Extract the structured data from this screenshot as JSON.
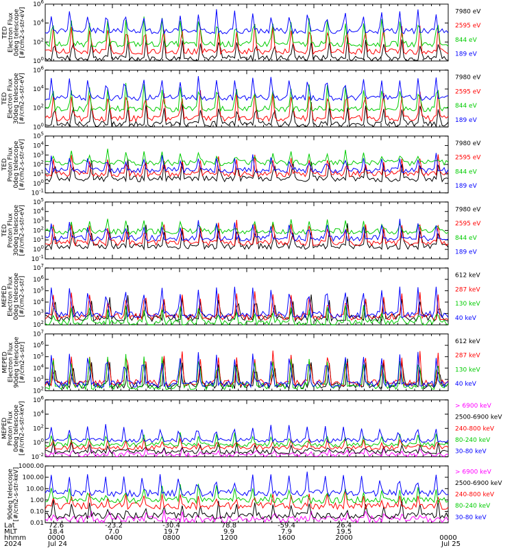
{
  "figure": {
    "date": {
      "year": "2024",
      "start": "Jul 24",
      "end": "Jul 25"
    },
    "x_axis_rows": [
      {
        "label": "Lat",
        "values": [
          "72.6",
          "-23.2",
          "-30.4",
          "78.8",
          "-59.4",
          "26.4"
        ]
      },
      {
        "label": "MLT",
        "values": [
          "18.4",
          "7.0",
          "19.7",
          "9.9",
          "7.9",
          "19.5"
        ]
      },
      {
        "label": "hhmm",
        "values": [
          "0000",
          "0400",
          "0800",
          "1200",
          "1600",
          "2000",
          "0000"
        ]
      }
    ]
  },
  "chart_data": [
    {
      "type": "line",
      "ylabel": [
        "TED",
        "Electron Flux",
        "0deg telescope",
        "[#/cm2-s-str-eV]"
      ],
      "yscale": "log",
      "ylim": [
        1,
        1000000
      ],
      "yticks": [
        {
          "v": 1,
          "label": "10^0"
        },
        {
          "v": 100,
          "label": "10^2"
        },
        {
          "v": 10000,
          "label": "10^4"
        },
        {
          "v": 1000000,
          "label": "10^6"
        }
      ],
      "series": [
        {
          "name": "7980 eV",
          "color": "#000000",
          "base": 2,
          "peak": 300
        },
        {
          "name": "2595 eV",
          "color": "#ff0000",
          "base": 10,
          "peak": 5000
        },
        {
          "name": "844 eV",
          "color": "#00cc00",
          "base": 60,
          "peak": 30000
        },
        {
          "name": "189 eV",
          "color": "#0000ff",
          "base": 1500,
          "peak": 200000
        }
      ]
    },
    {
      "type": "line",
      "ylabel": [
        "TED",
        "Electron Flux",
        "30deg telescope",
        "[#/cm2-s-str-eV]"
      ],
      "yscale": "log",
      "ylim": [
        1,
        1000000
      ],
      "yticks": [
        {
          "v": 1,
          "label": "10^0"
        },
        {
          "v": 100,
          "label": "10^2"
        },
        {
          "v": 10000,
          "label": "10^4"
        },
        {
          "v": 1000000,
          "label": "10^6"
        }
      ],
      "series": [
        {
          "name": "7980 eV",
          "color": "#000000",
          "base": 2,
          "peak": 300
        },
        {
          "name": "2595 eV",
          "color": "#ff0000",
          "base": 8,
          "peak": 5000
        },
        {
          "name": "844 eV",
          "color": "#00cc00",
          "base": 80,
          "peak": 30000
        },
        {
          "name": "189 eV",
          "color": "#0000ff",
          "base": 1200,
          "peak": 200000
        }
      ]
    },
    {
      "type": "line",
      "ylabel": [
        "TED",
        "Proton Flux",
        "0deg telescope",
        "[#/cm2-s-str-eV]"
      ],
      "yscale": "log",
      "ylim": [
        0.1,
        100000
      ],
      "yticks": [
        {
          "v": 0.1,
          "label": "10^-1"
        },
        {
          "v": 1,
          "label": "10^0"
        },
        {
          "v": 10,
          "label": "10^1"
        },
        {
          "v": 100,
          "label": "10^2"
        },
        {
          "v": 1000,
          "label": "10^3"
        },
        {
          "v": 10000,
          "label": "10^4"
        },
        {
          "v": 100000,
          "label": "10^5"
        }
      ],
      "series": [
        {
          "name": "7980 eV",
          "color": "#000000",
          "base": 3,
          "peak": 300
        },
        {
          "name": "2595 eV",
          "color": "#ff0000",
          "base": 10,
          "peak": 800
        },
        {
          "name": "844 eV",
          "color": "#00cc00",
          "base": 150,
          "peak": 3000
        },
        {
          "name": "189 eV",
          "color": "#0000ff",
          "base": 25,
          "peak": 1000
        }
      ]
    },
    {
      "type": "line",
      "ylabel": [
        "TED",
        "Proton Flux",
        "30deg telescope",
        "[#/cm2-s-str-eV]"
      ],
      "yscale": "log",
      "ylim": [
        0.1,
        100000
      ],
      "yticks": [
        {
          "v": 0.1,
          "label": "10^-1"
        },
        {
          "v": 1,
          "label": "10^0"
        },
        {
          "v": 10,
          "label": "10^1"
        },
        {
          "v": 100,
          "label": "10^2"
        },
        {
          "v": 1000,
          "label": "10^3"
        },
        {
          "v": 10000,
          "label": "10^4"
        },
        {
          "v": 100000,
          "label": "10^5"
        }
      ],
      "series": [
        {
          "name": "7980 eV",
          "color": "#000000",
          "base": 2,
          "peak": 300
        },
        {
          "name": "2595 eV",
          "color": "#ff0000",
          "base": 5,
          "peak": 800
        },
        {
          "name": "844 eV",
          "color": "#00cc00",
          "base": 80,
          "peak": 2000
        },
        {
          "name": "189 eV",
          "color": "#0000ff",
          "base": 15,
          "peak": 1000
        }
      ]
    },
    {
      "type": "line",
      "ylabel": [
        "MEPED",
        "Electron Flux",
        "0deg telescope",
        "[#/cm2-s-str]"
      ],
      "yscale": "log",
      "ylim": [
        100,
        10000000
      ],
      "yticks": [
        {
          "v": 100,
          "label": "10^2"
        },
        {
          "v": 1000,
          "label": "10^3"
        },
        {
          "v": 10000,
          "label": "10^4"
        },
        {
          "v": 100000,
          "label": "10^5"
        },
        {
          "v": 1000000,
          "label": "10^6"
        },
        {
          "v": 10000000,
          "label": "10^7"
        }
      ],
      "series": [
        {
          "name": "612 keV",
          "color": "#000000",
          "base": 400,
          "peak": 40000
        },
        {
          "name": "287 keV",
          "color": "#ff0000",
          "base": 500,
          "peak": 80000
        },
        {
          "name": "130 keV",
          "color": "#00cc00",
          "base": 150,
          "peak": 5000
        },
        {
          "name": "40 keV",
          "color": "#0000ff",
          "base": 800,
          "peak": 300000
        }
      ]
    },
    {
      "type": "line",
      "ylabel": [
        "MEPED",
        "Electron Flux",
        "90deg telescope",
        "[#/cm2-s-str]"
      ],
      "yscale": "log",
      "ylim": [
        100,
        10000000
      ],
      "yticks": [
        {
          "v": 100,
          "label": "10^2"
        },
        {
          "v": 1000,
          "label": "10^3"
        },
        {
          "v": 10000,
          "label": "10^4"
        },
        {
          "v": 100000,
          "label": "10^5"
        },
        {
          "v": 1000000,
          "label": "10^6"
        },
        {
          "v": 10000000,
          "label": "10^7"
        }
      ],
      "series": [
        {
          "name": "612 keV",
          "color": "#000000",
          "base": 300,
          "peak": 60000
        },
        {
          "name": "287 keV",
          "color": "#ff0000",
          "base": 500,
          "peak": 300000
        },
        {
          "name": "130 keV",
          "color": "#00cc00",
          "base": 250,
          "peak": 100000
        },
        {
          "name": "40 keV",
          "color": "#0000ff",
          "base": 400,
          "peak": 200000
        }
      ]
    },
    {
      "type": "line",
      "ylabel": [
        "MEPED",
        "Proton Flux",
        "0deg telescope",
        "[#/cm2-s-str-keV]"
      ],
      "yscale": "log",
      "ylim": [
        0.01,
        1000000
      ],
      "yticks": [
        {
          "v": 0.01,
          "label": "10^-2"
        },
        {
          "v": 1,
          "label": "10^0"
        },
        {
          "v": 100,
          "label": "10^2"
        },
        {
          "v": 10000,
          "label": "10^4"
        },
        {
          "v": 1000000,
          "label": "10^6"
        }
      ],
      "series": [
        {
          "name": "> 6900 keV",
          "color": "#ff00ff",
          "base": 0.02,
          "peak": 0.2
        },
        {
          "name": "2500-6900 keV",
          "color": "#000000",
          "base": 0.05,
          "peak": 1
        },
        {
          "name": "240-800 keV",
          "color": "#ff0000",
          "base": 0.2,
          "peak": 5
        },
        {
          "name": "80-240 keV",
          "color": "#00cc00",
          "base": 0.5,
          "peak": 20
        },
        {
          "name": "30-80 keV",
          "color": "#0000ff",
          "base": 2,
          "peak": 300
        }
      ]
    },
    {
      "type": "line",
      "ylabel": [
        "90deg telescope",
        "[#/cm2-s-str-keV]"
      ],
      "yscale": "log",
      "ylim": [
        0.01,
        1000
      ],
      "yticks": [
        {
          "v": 0.01,
          "label": "0.01"
        },
        {
          "v": 0.1,
          "label": "0.10"
        },
        {
          "v": 1,
          "label": "1.00"
        },
        {
          "v": 10,
          "label": "10.00"
        },
        {
          "v": 100,
          "label": "100.00"
        },
        {
          "v": 1000,
          "label": "1000.00"
        }
      ],
      "series": [
        {
          "name": "> 6900 keV",
          "color": "#ff00ff",
          "base": 0.02,
          "peak": 0.1
        },
        {
          "name": "2500-6900 keV",
          "color": "#000000",
          "base": 0.04,
          "peak": 0.8
        },
        {
          "name": "240-800 keV",
          "color": "#ff0000",
          "base": 0.3,
          "peak": 5
        },
        {
          "name": "80-240 keV",
          "color": "#00cc00",
          "base": 1,
          "peak": 20
        },
        {
          "name": "30-80 keV",
          "color": "#0000ff",
          "base": 4,
          "peak": 300
        }
      ]
    }
  ]
}
